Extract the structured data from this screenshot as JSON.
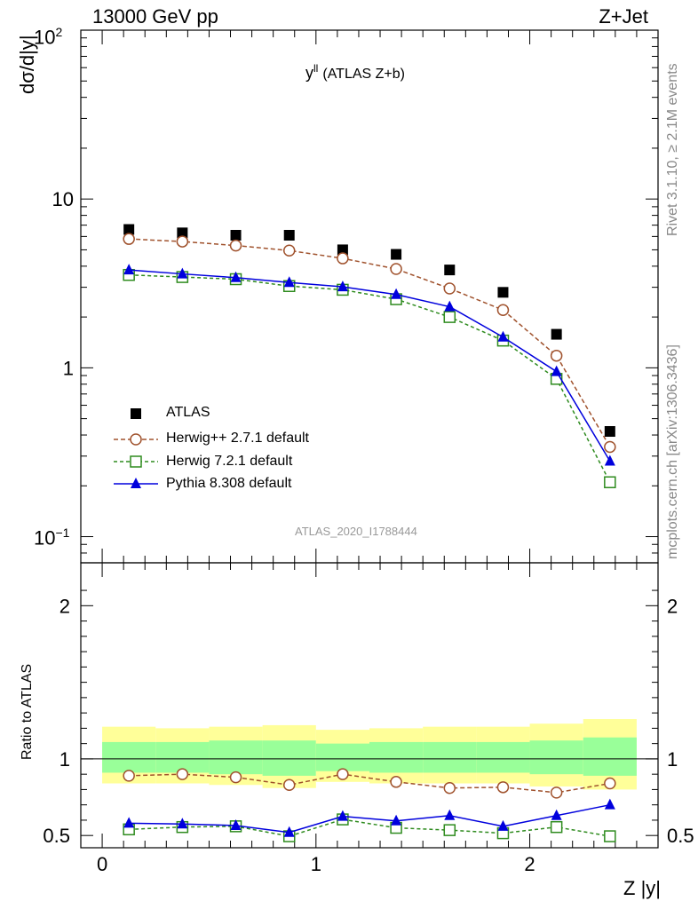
{
  "header": {
    "left": "13000 GeV pp",
    "right": "Z+Jet"
  },
  "side_labels": {
    "rivet": "Rivet 3.1.10, ≥ 2.1M events",
    "mcplots": "mcplots.cern.ch [arXiv:1306.3436]"
  },
  "colors": {
    "atlas": "#000000",
    "herwigpp": "#a0522d",
    "herwig7": "#2e8b1e",
    "pythia": "#0000dd",
    "band_outer": "#ffff99",
    "band_inner": "#99ff99"
  },
  "chart_data": [
    {
      "type": "scatter",
      "panel": "main",
      "title": "y",
      "title_superscript": "ll",
      "title_suffix": "(ATLAS Z+b)",
      "ylabel": "dσ/d|y|",
      "analysis_label": "ATLAS_2020_I1788444",
      "yscale": "log",
      "xlim": [
        -0.1,
        2.6
      ],
      "ylim": [
        0.07,
        100
      ],
      "y_tick_labels": [
        "10",
        "1"
      ],
      "y_tick_values": [
        10,
        1
      ],
      "y_tick_label_top": "10",
      "y_tick_label_top_exp": "2",
      "y_tick_label_bottom": "10",
      "y_tick_label_bottom_exp": "−1",
      "x": [
        0.125,
        0.375,
        0.625,
        0.875,
        1.125,
        1.375,
        1.625,
        1.875,
        2.125,
        2.375
      ],
      "series": [
        {
          "name": "ATLAS",
          "style": "square-filled",
          "color": "#000000",
          "values": [
            6.6,
            6.3,
            6.1,
            6.1,
            5.0,
            4.7,
            3.8,
            2.8,
            1.58,
            0.42
          ]
        },
        {
          "name": "Herwig++ 2.7.1 default",
          "style": "circle-dashed",
          "color": "#a0522d",
          "values": [
            5.8,
            5.6,
            5.3,
            4.95,
            4.45,
            3.85,
            2.95,
            2.2,
            1.18,
            0.34
          ]
        },
        {
          "name": "Herwig 7.2.1 default",
          "style": "square-open-dashed",
          "color": "#2e8b1e",
          "values": [
            3.55,
            3.45,
            3.35,
            3.05,
            2.9,
            2.55,
            2.0,
            1.45,
            0.86,
            0.21
          ]
        },
        {
          "name": "Pythia 8.308 default",
          "style": "triangle-solid",
          "color": "#0000dd",
          "values": [
            3.8,
            3.6,
            3.42,
            3.2,
            3.02,
            2.72,
            2.3,
            1.52,
            0.95,
            0.28
          ]
        }
      ]
    },
    {
      "type": "line",
      "panel": "ratio",
      "ylabel": "Ratio to ATLAS",
      "xlabel": "Z |y|",
      "xlim": [
        -0.1,
        2.6
      ],
      "ylim": [
        0.42,
        2.28
      ],
      "x_tick_labels": [
        "0",
        "1",
        "2"
      ],
      "x_tick_values": [
        0,
        1,
        2
      ],
      "y_tick_labels": [
        "0.5",
        "1",
        "2"
      ],
      "y_tick_values": [
        0.5,
        1,
        2
      ],
      "x": [
        0.125,
        0.375,
        0.625,
        0.875,
        1.125,
        1.375,
        1.625,
        1.875,
        2.125,
        2.375
      ],
      "band_edges": [
        0,
        0.25,
        0.5,
        0.75,
        1.0,
        1.25,
        1.5,
        1.75,
        2.0,
        2.25,
        2.5
      ],
      "band_outer_lo": [
        0.84,
        0.84,
        0.83,
        0.81,
        0.85,
        0.84,
        0.84,
        0.84,
        0.82,
        0.8
      ],
      "band_outer_hi": [
        1.21,
        1.2,
        1.21,
        1.22,
        1.19,
        1.2,
        1.21,
        1.21,
        1.23,
        1.26
      ],
      "band_inner_lo": [
        0.91,
        0.91,
        0.9,
        0.89,
        0.92,
        0.91,
        0.91,
        0.91,
        0.9,
        0.89
      ],
      "band_inner_hi": [
        1.11,
        1.11,
        1.12,
        1.12,
        1.1,
        1.11,
        1.11,
        1.11,
        1.12,
        1.14
      ],
      "series": [
        {
          "name": "Herwig++ 2.7.1 default",
          "color": "#a0522d",
          "values": [
            0.89,
            0.9,
            0.88,
            0.83,
            0.9,
            0.85,
            0.81,
            0.815,
            0.78,
            0.84
          ]
        },
        {
          "name": "Herwig 7.2.1 default",
          "color": "#2e8b1e",
          "values": [
            0.54,
            0.555,
            0.56,
            0.495,
            0.605,
            0.55,
            0.535,
            0.515,
            0.555,
            0.495
          ]
        },
        {
          "name": "Pythia 8.308 default",
          "color": "#0000dd",
          "values": [
            0.58,
            0.575,
            0.565,
            0.52,
            0.625,
            0.595,
            0.63,
            0.56,
            0.63,
            0.7
          ]
        }
      ]
    }
  ]
}
